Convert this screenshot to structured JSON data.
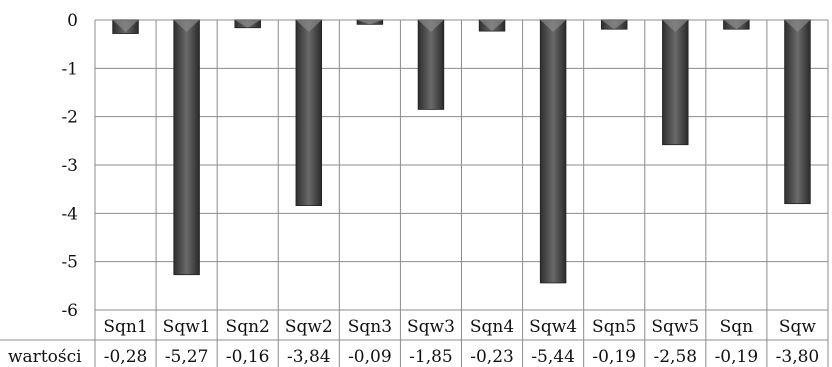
{
  "chart_data": {
    "type": "bar",
    "categories": [
      "Sqn1",
      "Sqw1",
      "Sqn2",
      "Sqw2",
      "Sqn3",
      "Sqw3",
      "Sqn4",
      "Sqw4",
      "Sqn5",
      "Sqw5",
      "Sqn",
      "Sqw"
    ],
    "series": [
      {
        "name": "wartości",
        "values": [
          -0.28,
          -5.27,
          -0.16,
          -3.84,
          -0.09,
          -1.85,
          -0.23,
          -5.44,
          -0.19,
          -2.58,
          -0.19,
          -3.8
        ]
      }
    ],
    "value_labels": [
      "-0,28",
      "-5,27",
      "-0,16",
      "-3,84",
      "-0,09",
      "-1,85",
      "-0,23",
      "-5,44",
      "-0,19",
      "-2,58",
      "-0,19",
      "-3,80"
    ],
    "y_ticks": [
      0,
      -1,
      -2,
      -3,
      -4,
      -5,
      -6
    ],
    "y_tick_labels": [
      "0",
      "-1",
      "-2",
      "-3",
      "-4",
      "-5",
      "-6"
    ],
    "ylim": [
      -6,
      0
    ],
    "grid": true,
    "legend": "data-table",
    "bar_color": "#4a4a4a",
    "grid_color": "#8c8c8c"
  }
}
